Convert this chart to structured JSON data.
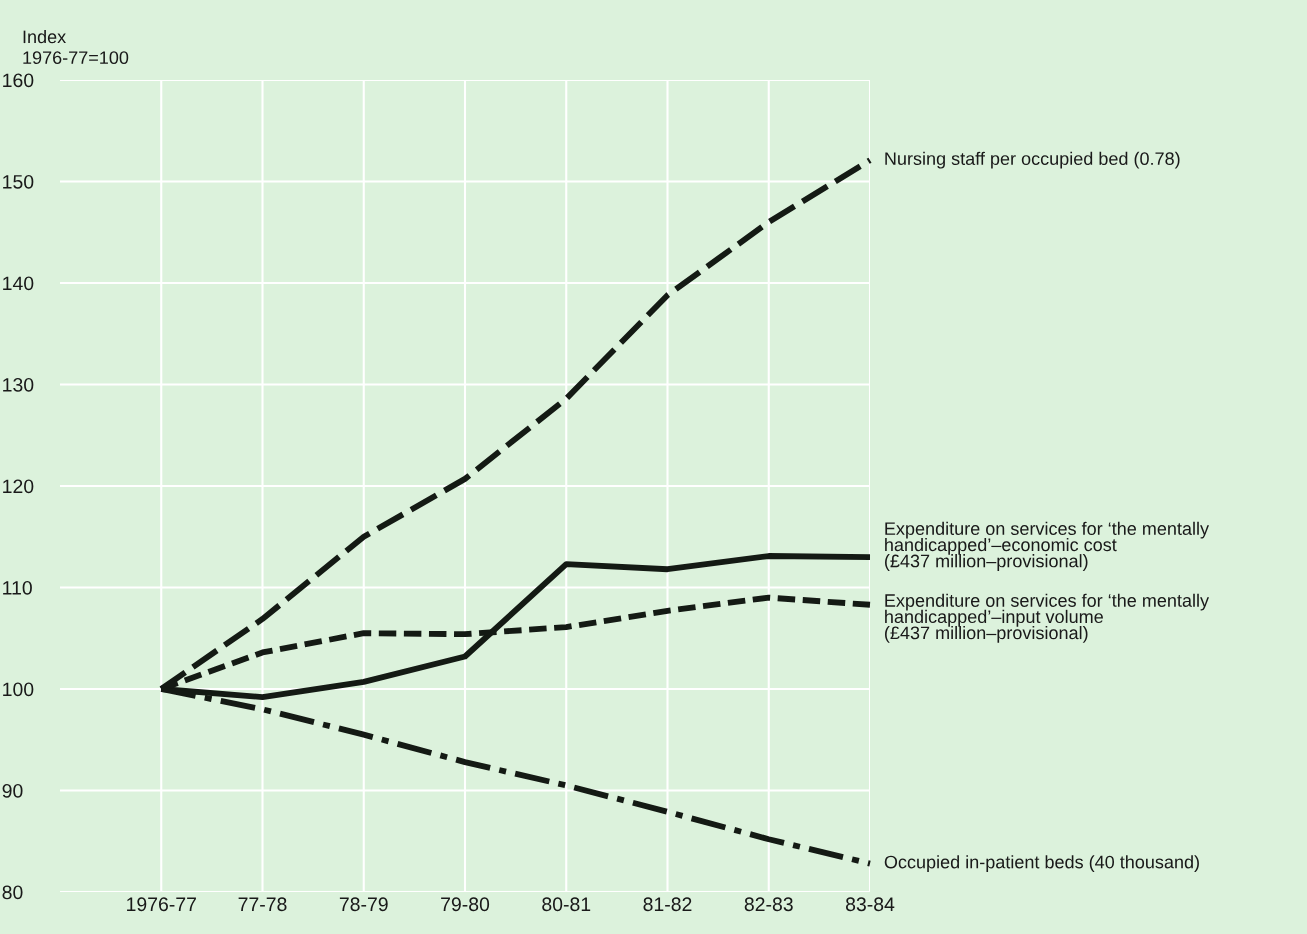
{
  "chart_data": {
    "type": "line",
    "ylabel": "Index\n1976-77=100",
    "categories": [
      "1976-77",
      "77-78",
      "78-79",
      "79-80",
      "80-81",
      "81-82",
      "82-83",
      "83-84"
    ],
    "series": [
      {
        "name": "Nursing staff per occupied bed (0.78)",
        "color": "#141a14",
        "line_style": "longdashed",
        "values": [
          100,
          106.9,
          115.0,
          120.7,
          128.6,
          138.8,
          146.0,
          152.1
        ]
      },
      {
        "name": "Expenditure on services for ‘the mentally\nhandicapped’–economic cost\n(£437 million–provisional)",
        "color": "#141a14",
        "line_style": "solid",
        "values": [
          100,
          99.2,
          100.7,
          103.2,
          112.3,
          111.8,
          113.1,
          113.0
        ]
      },
      {
        "name": "Expenditure on services for ‘the mentally\nhandicapped’–input volume\n(£437 million–provisional)",
        "color": "#141a14",
        "line_style": "dashed",
        "values": [
          100,
          103.6,
          105.5,
          105.4,
          106.1,
          107.7,
          109.0,
          108.3
        ]
      },
      {
        "name": "Occupied in-patient beds (40 thousand)",
        "color": "#141a14",
        "line_style": "dashdot",
        "values": [
          100,
          98.0,
          95.5,
          92.8,
          90.5,
          87.9,
          85.2,
          82.8
        ]
      }
    ],
    "ylim": [
      80,
      160
    ],
    "yticks": [
      80,
      90,
      100,
      110,
      120,
      130,
      140,
      150,
      160
    ],
    "grid": true,
    "legend": false,
    "marker": "none"
  }
}
